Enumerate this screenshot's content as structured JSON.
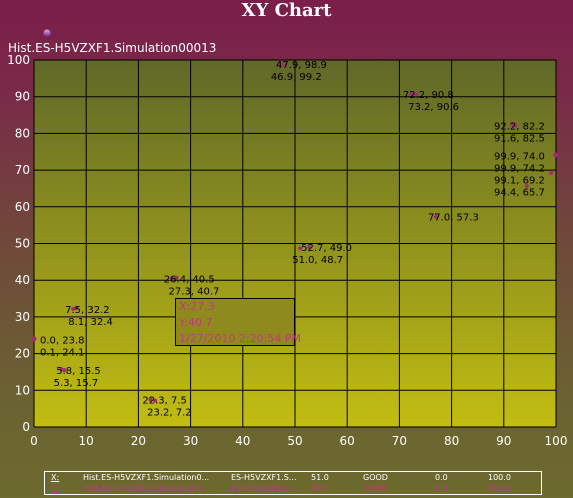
{
  "chart_data": {
    "type": "scatter",
    "title": "XY Chart",
    "series_title": "Hist.ES-H5VZXF1.Simulation00013",
    "xlim": [
      0,
      100
    ],
    "ylim": [
      0,
      100
    ],
    "x_ticks": [
      0,
      10,
      20,
      30,
      40,
      50,
      60,
      70,
      80,
      90,
      100
    ],
    "y_ticks": [
      0,
      10,
      20,
      30,
      40,
      50,
      60,
      70,
      80,
      90,
      100
    ],
    "grid": true,
    "colors": {
      "plot_top": "#5f6828",
      "plot_bottom": "#c2bd12",
      "grid": "#000000",
      "marker": "#a6287a",
      "label_text": "#000000",
      "axis_text": "#ffffff",
      "tooltip_bg": "#8f8a1e",
      "tooltip_text": "#c13a7d"
    },
    "points": [
      {
        "x": 47.9,
        "y": 98.9,
        "label": "47.9, 98.9"
      },
      {
        "x": 46.9,
        "y": 99.2,
        "label": "46.9, 99.2"
      },
      {
        "x": 72.2,
        "y": 90.8,
        "label": "72.2, 90.8"
      },
      {
        "x": 73.2,
        "y": 90.6,
        "label": "73.2, 90.6"
      },
      {
        "x": 92.2,
        "y": 82.2,
        "label": "92.2, 82.2"
      },
      {
        "x": 91.6,
        "y": 82.5,
        "label": "91.6, 82.5"
      },
      {
        "x": 99.9,
        "y": 74.0,
        "label": "99.9, 74.0"
      },
      {
        "x": 99.9,
        "y": 74.2,
        "label": "99.9, 74.2"
      },
      {
        "x": 99.1,
        "y": 69.2,
        "label": "99.1, 69.2"
      },
      {
        "x": 94.4,
        "y": 65.7,
        "label": "94.4, 65.7"
      },
      {
        "x": 77.0,
        "y": 57.3,
        "label": "77.0, 57.3"
      },
      {
        "x": 52.7,
        "y": 49.0,
        "label": "52.7, 49.0"
      },
      {
        "x": 51.0,
        "y": 48.7,
        "label": "51.0, 48.7"
      },
      {
        "x": 26.4,
        "y": 40.5,
        "label": "26.4, 40.5"
      },
      {
        "x": 27.3,
        "y": 40.7,
        "label": "27.3, 40.7"
      },
      {
        "x": 7.5,
        "y": 32.2,
        "label": "7.5, 32.2"
      },
      {
        "x": 8.1,
        "y": 32.4,
        "label": "8.1, 32.4"
      },
      {
        "x": 0.0,
        "y": 23.8,
        "label": "0.0, 23.8"
      },
      {
        "x": 0.1,
        "y": 24.1,
        "label": "0.1, 24.1"
      },
      {
        "x": 5.8,
        "y": 15.5,
        "label": "5.8, 15.5"
      },
      {
        "x": 5.3,
        "y": 15.7,
        "label": "5.3, 15.7"
      },
      {
        "x": 22.3,
        "y": 7.5,
        "label": "22.3, 7.5"
      },
      {
        "x": 23.2,
        "y": 7.2,
        "label": "23.2, 7.2"
      }
    ],
    "tooltip": {
      "x_text": "X:27.3",
      "y_text": "Y:40.7",
      "time_text": "1/27/2010 2:20:54 PM"
    },
    "legend_rows": [
      {
        "key": "X:",
        "name": "Hist.ES-H5VZXF1.Simulation0...",
        "column": "ES-H5VZXF1.S...",
        "value": "51.0",
        "quality": "GOOD",
        "min": "0.0",
        "max": "100.0",
        "color": "#ffffff"
      },
      {
        "key": "Y:",
        "name": "Hist.ES-H5VZXF1.Simulation0...",
        "column": "ES-H5VZXF1.S...",
        "value": "48.7",
        "quality": "GOOD",
        "min": "0.0",
        "max": "100.0",
        "color": "#c13a7d"
      }
    ]
  }
}
